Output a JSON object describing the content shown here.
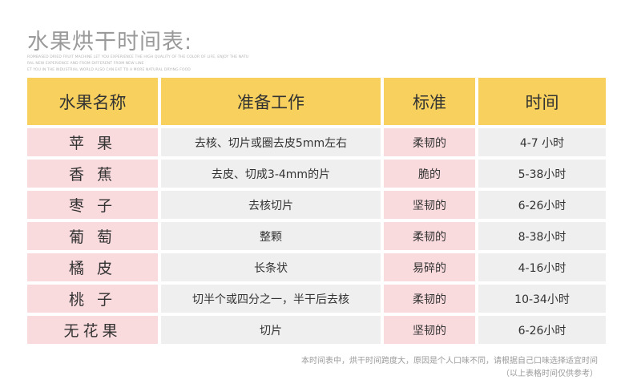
{
  "title": "水果烘干时间表:",
  "subtitle_lines": [
    "ROMBASED DRIED FRUIT MACHINE LET YOU EXPERIENCE THE HIGH QUALITY OF THE COLOR OF LIFE, ENJOY THE NATU",
    "RAL NEW EXPERIENCE AND FROM DIFFERENT FROM NEW LINE",
    "ET YOU IN THE INDUSTRIAL WORLD ALSO CAN EAT TO A MORE NATURAL DRYING FOOD"
  ],
  "table": {
    "headers": [
      "水果名称",
      "准备工作",
      "标准",
      "时间"
    ],
    "rows": [
      [
        "苹 果",
        "去核、切片或圈去皮5mm左右",
        "柔韧的",
        "4-7 小时"
      ],
      [
        "香 蕉",
        "去皮、切成3-4mm的片",
        "脆的",
        "5-38小时"
      ],
      [
        "枣 子",
        "去核切片",
        "坚韧的",
        "6-26小时"
      ],
      [
        "葡 萄",
        "整颗",
        "柔韧的",
        "8-38小时"
      ],
      [
        "橘 皮",
        "长条状",
        "易碎的",
        "4-16小时"
      ],
      [
        "桃 子",
        "切半个或四分之一，半干后去核",
        "柔韧的",
        "10-34小时"
      ],
      [
        "无花果",
        "切片",
        "坚韧的",
        "6-26小时"
      ]
    ]
  },
  "notes": [
    "本时间表中，烘干时间跨度大，原因是个人口味不同，请根据自己口味选择适宜时间",
    "（以上表格时间仅供参考）"
  ],
  "colors": {
    "header": "#f7d05d",
    "pink": "#f9dadd",
    "gray": "#efefef",
    "title": "#9a9a9a"
  }
}
